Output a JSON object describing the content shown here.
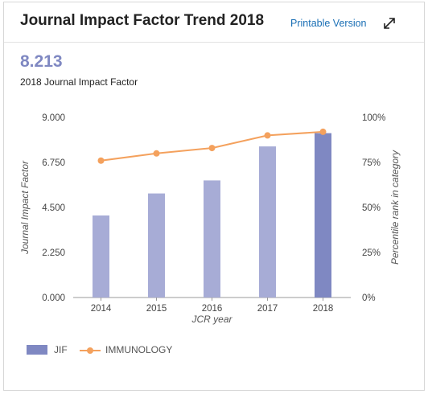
{
  "header": {
    "title": "Journal Impact Factor Trend 2018",
    "printable_label": "Printable Version",
    "expand_icon": "expand-arrows-icon"
  },
  "summary": {
    "value": "8.213",
    "label": "2018 Journal Impact Factor"
  },
  "colors": {
    "bar_current": "#7f88c2",
    "bar_past": "#a7acd6",
    "line": "#f4a15d",
    "link": "#1a6fb5"
  },
  "chart_data": {
    "type": "bar",
    "categories": [
      "2014",
      "2015",
      "2016",
      "2017",
      "2018"
    ],
    "series": [
      {
        "name": "JIF",
        "type": "bar",
        "axis": "left",
        "values": [
          4.1,
          5.2,
          5.85,
          7.55,
          8.213
        ]
      },
      {
        "name": "IMMUNOLOGY",
        "type": "line",
        "axis": "right",
        "values": [
          76,
          80,
          83,
          90,
          92
        ]
      }
    ],
    "xlabel": "JCR year",
    "ylabel": "Journal Impact Factor",
    "y2label": "Percentile rank in category",
    "ylim": [
      0,
      9
    ],
    "y2lim": [
      0,
      100
    ],
    "yticks": [
      "0.000",
      "2.250",
      "4.500",
      "6.750",
      "9.000"
    ],
    "y2ticks": [
      "0%",
      "25%",
      "50%",
      "75%",
      "100%"
    ],
    "grid": false,
    "legend": "bottom-left"
  }
}
